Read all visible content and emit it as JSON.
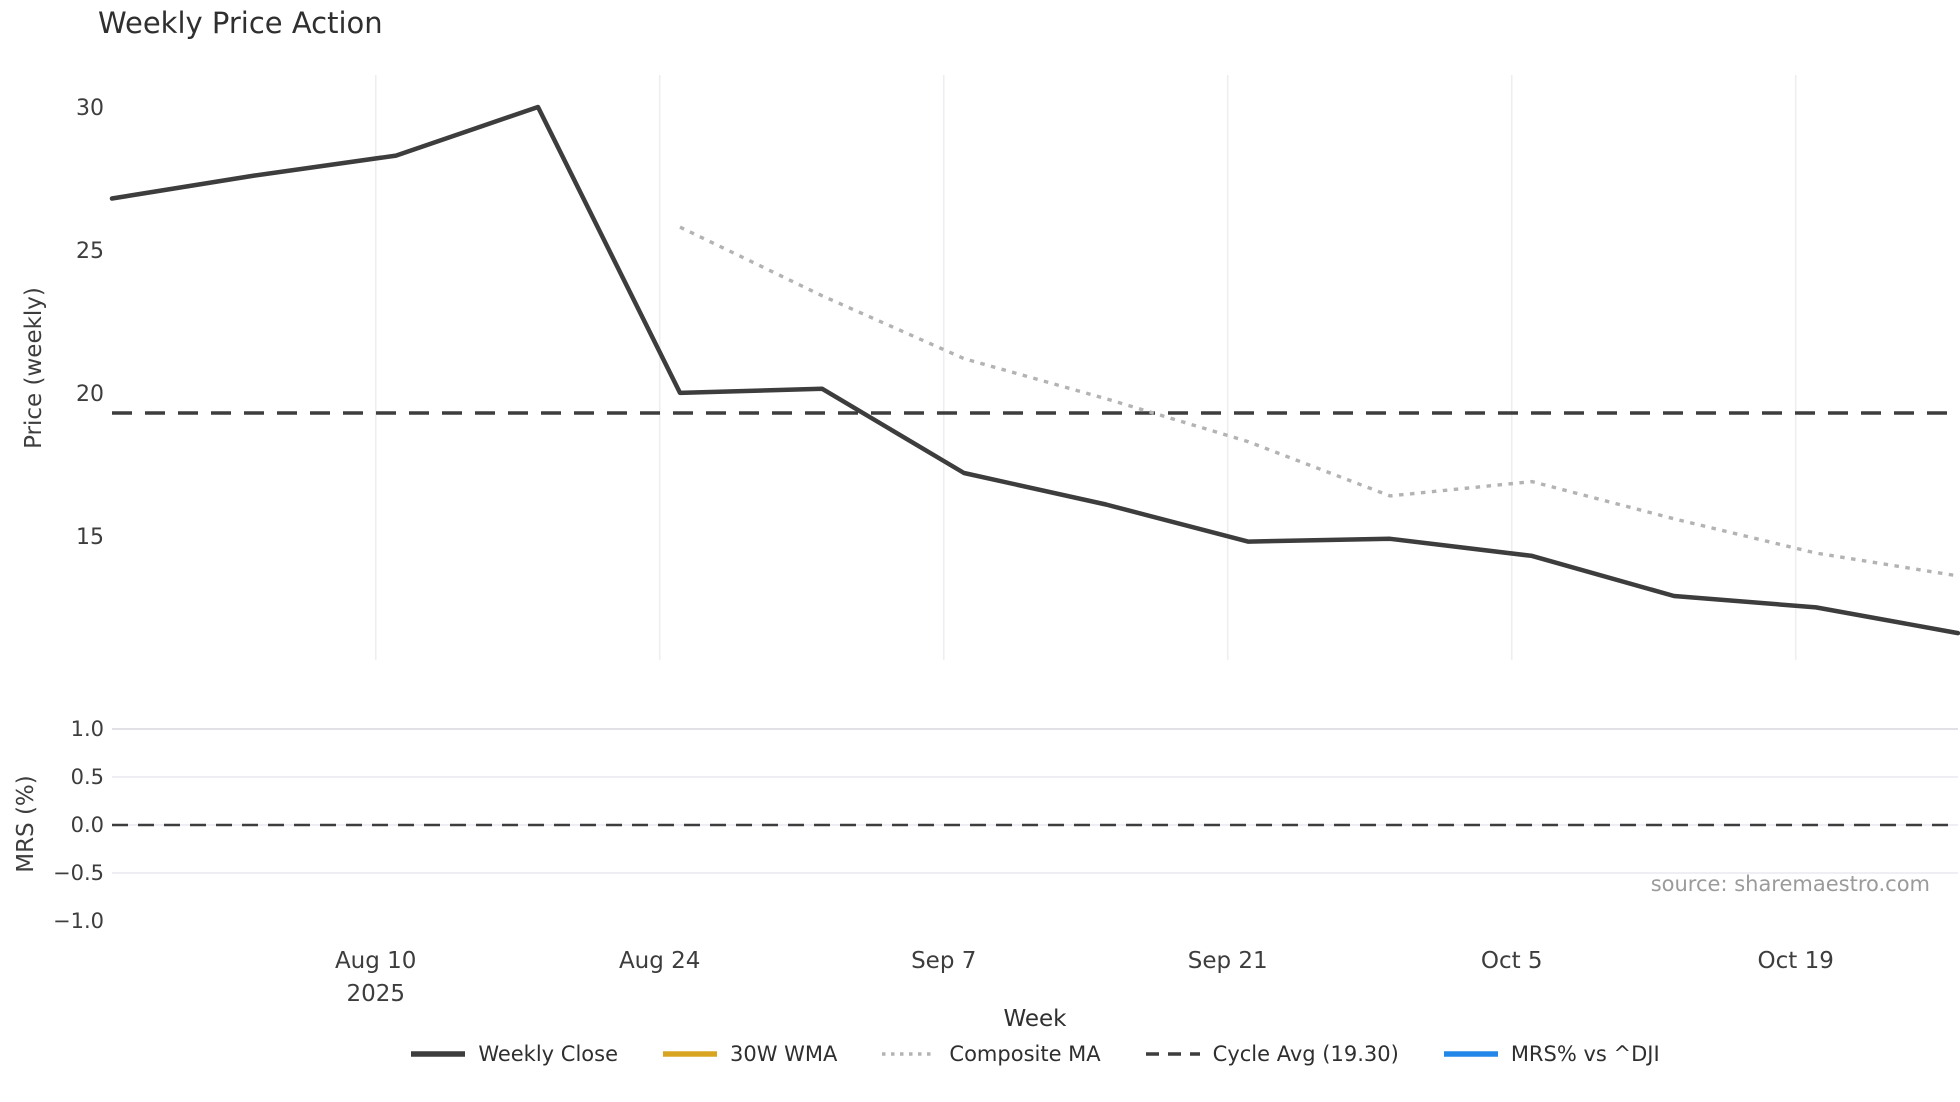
{
  "title": "Weekly Price Action",
  "source": "source: sharemaestro.com",
  "chart_data": {
    "type": "line",
    "title": "Weekly Price Action",
    "xlabel": "Week",
    "x_range": [
      "Jul 28",
      "Oct 27"
    ],
    "xticks": [
      {
        "date": "Aug 10",
        "label": "Aug 10",
        "year": "2025"
      },
      {
        "date": "Aug 24",
        "label": "Aug 24"
      },
      {
        "date": "Sep 7",
        "label": "Sep 7"
      },
      {
        "date": "Sep 21",
        "label": "Sep 21"
      },
      {
        "date": "Oct 5",
        "label": "Oct 5"
      },
      {
        "date": "Oct 19",
        "label": "Oct 19"
      }
    ],
    "panels": [
      {
        "name": "price",
        "ylabel": "Price (weekly)",
        "ylim": [
          10.66,
          31.12
        ],
        "grid": "vertical",
        "yticks": [
          {
            "value": 30,
            "label": "30"
          },
          {
            "value": 25,
            "label": "25"
          },
          {
            "value": 20,
            "label": "20"
          },
          {
            "value": 15,
            "label": "15"
          }
        ],
        "x_dates": [
          "Jul 28",
          "Aug 4",
          "Aug 11",
          "Aug 18",
          "Aug 25",
          "Sep 1",
          "Sep 8",
          "Sep 15",
          "Sep 22",
          "Sep 29",
          "Oct 6",
          "Oct 13",
          "Oct 20",
          "Oct 27"
        ],
        "series": [
          {
            "name": "Weekly Close",
            "style": "solid",
            "color": "#3d3d3d",
            "values": [
              26.8,
              27.6,
              28.3,
              30.0,
              20.0,
              20.15,
              17.2,
              16.1,
              14.8,
              14.9,
              14.3,
              12.9,
              12.5,
              11.6
            ]
          },
          {
            "name": "Composite MA",
            "style": "dotted",
            "color": "#b3b3b3",
            "values": [
              null,
              null,
              null,
              null,
              25.8,
              23.4,
              21.2,
              19.8,
              18.3,
              16.4,
              16.9,
              15.6,
              14.4,
              13.6
            ]
          },
          {
            "name": "Cycle Avg (19.30)",
            "style": "dashed",
            "color": "#3d3d3d",
            "constant": 19.3
          },
          {
            "name": "30W WMA",
            "style": "solid",
            "color": "#d9a521",
            "values": null
          }
        ]
      },
      {
        "name": "mrs",
        "ylabel": "MRS (%)",
        "ylim": [
          -1.125,
          1.125
        ],
        "grid": "horizontal",
        "yticks": [
          {
            "value": 1.0,
            "label": "1.0",
            "grid": true
          },
          {
            "value": 0.5,
            "label": "0.5",
            "grid": true
          },
          {
            "value": 0.0,
            "label": "0.0",
            "grid": true
          },
          {
            "value": -0.5,
            "label": "−0.5",
            "grid": true
          },
          {
            "value": -1.0,
            "label": "−1.0",
            "grid": false
          }
        ],
        "zero_line": {
          "value": 0.0,
          "style": "dashed",
          "color": "#3d3d3d"
        },
        "series": [
          {
            "name": "MRS% vs ^DJI",
            "style": "solid",
            "color": "#2287e8",
            "values": null
          }
        ]
      }
    ]
  },
  "legend": {
    "items": [
      {
        "label": "Weekly Close",
        "style": "solid",
        "color": "#3d3d3d"
      },
      {
        "label": "30W WMA",
        "style": "solid",
        "color": "#d9a521"
      },
      {
        "label": "Composite MA",
        "style": "dotted",
        "color": "#b3b3b3"
      },
      {
        "label": "Cycle Avg (19.30)",
        "style": "dashed",
        "color": "#3d3d3d"
      },
      {
        "label": "MRS% vs ^DJI",
        "style": "solid",
        "color": "#2287e8"
      }
    ]
  }
}
